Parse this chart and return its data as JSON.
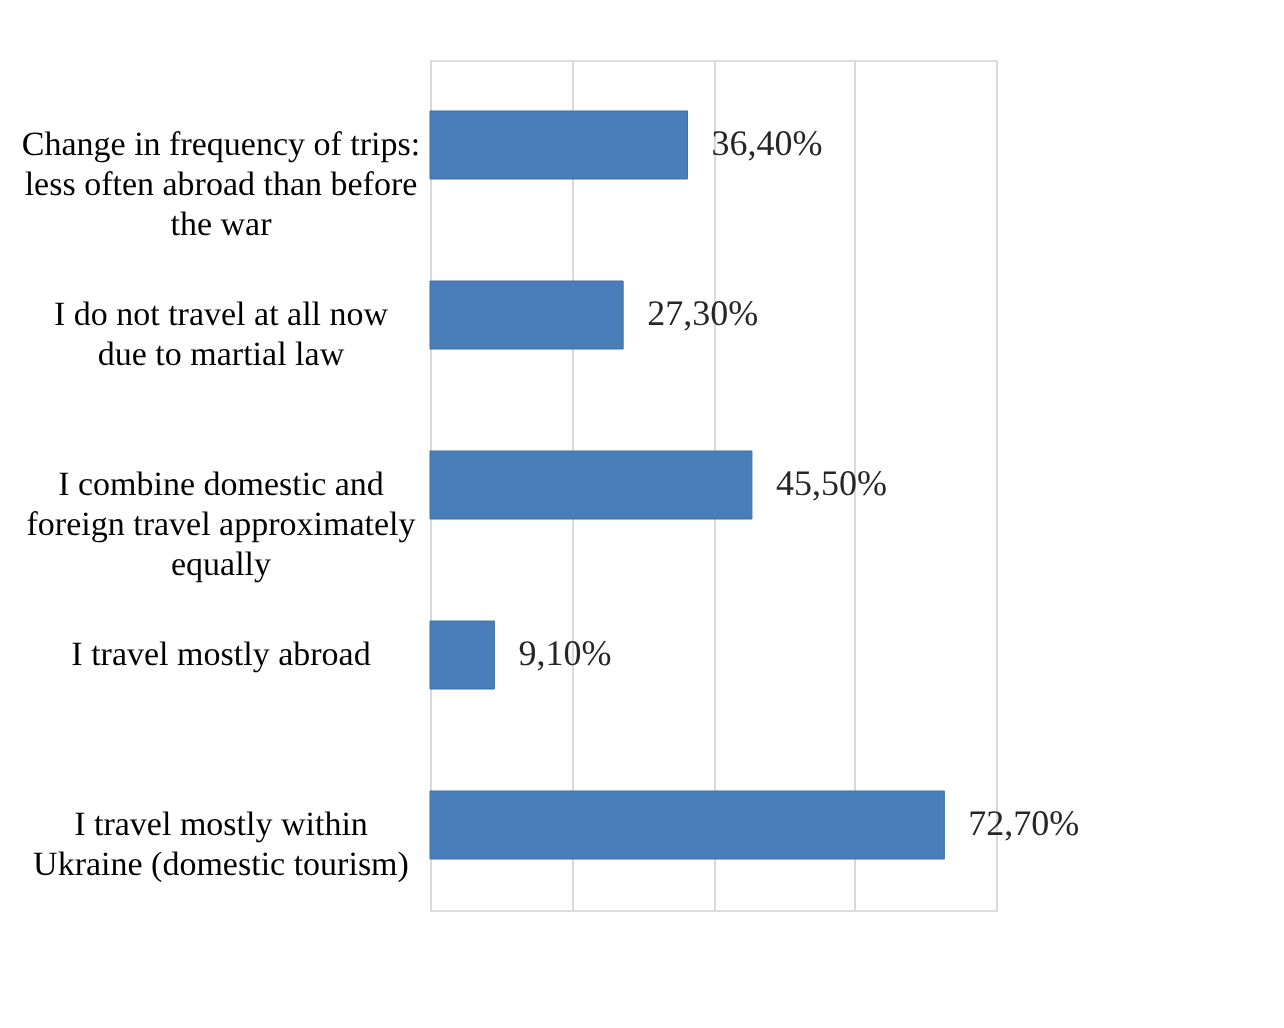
{
  "chart_data": {
    "type": "bar",
    "orientation": "horizontal",
    "relative": false,
    "categories": [
      "Change in frequency of trips: less often abroad than before the war",
      "I do not travel at all now due to martial law",
      "I combine domestic and foreign travel approximately equally",
      "I travel mostly abroad",
      "I travel mostly within Ukraine (domestic tourism)"
    ],
    "values": [
      36.4,
      27.3,
      45.5,
      9.1,
      72.7
    ],
    "value_labels": [
      "36,40%",
      "27,30%",
      "45,50%",
      "9,10%",
      "72,70%"
    ],
    "color": "#4a7ebb",
    "xlim": [
      0,
      80
    ],
    "xticks": [
      {
        "value": 0,
        "label": null
      },
      {
        "value": 20,
        "label": null
      },
      {
        "value": 40,
        "label": null
      },
      {
        "value": 60,
        "label": null
      },
      {
        "value": 80,
        "label": null
      }
    ],
    "tick_labels": "y",
    "grid": "x"
  }
}
